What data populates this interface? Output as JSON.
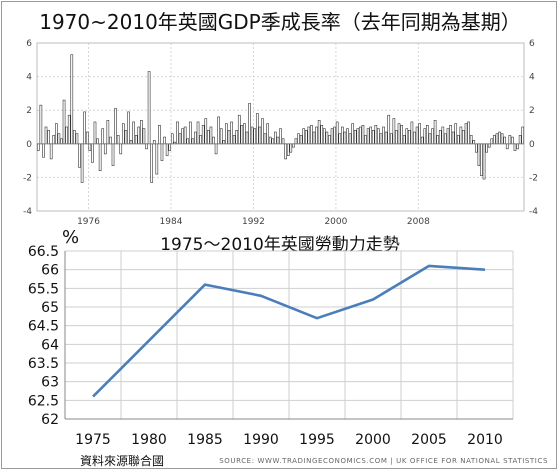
{
  "chart_data": [
    {
      "type": "bar",
      "title": "1970~2010年英國GDP季成長率（去年同期為基期）",
      "x_start_year": 1971,
      "ylim": [
        -4,
        6
      ],
      "y_ticks": [
        -4,
        -2,
        0,
        2,
        4,
        6
      ],
      "x_ticks": [
        "1976",
        "1984",
        "1992",
        "2000",
        "2008"
      ],
      "grid": true,
      "series": [
        {
          "values": [
            -0.4,
            2.3,
            -0.8,
            1.0,
            0.8,
            -0.9,
            0.5,
            1.2,
            0.6,
            0.3,
            2.6,
            1.0,
            1.7,
            5.3,
            0.8,
            0.6,
            -1.4,
            -2.3,
            1.9,
            0.7,
            -0.4,
            -1.1,
            1.3,
            0.3,
            -1.6,
            0.9,
            -0.6,
            1.4,
            0.4,
            -1.3,
            2.1,
            0.5,
            -0.6,
            1.2,
            0.8,
            1.9,
            0.2,
            1.3,
            0.5,
            1.0,
            1.4,
            0.9,
            -0.3,
            4.3,
            -2.3,
            0.2,
            -1.8,
            1.1,
            -1.0,
            0.4,
            -0.7,
            -0.4,
            0.6,
            0.1,
            1.3,
            0.6,
            0.9,
            1.0,
            0.3,
            1.3,
            0.3,
            0.7,
            1.3,
            0.5,
            1.1,
            1.5,
            0.8,
            1.0,
            0.4,
            -0.6,
            1.6,
            0.9,
            0.2,
            1.2,
            0.8,
            1.3,
            0.5,
            0.8,
            1.7,
            1.1,
            1.2,
            0.7,
            2.4,
            1.0,
            0.9,
            1.8,
            1.0,
            1.5,
            0.6,
            1.2,
            0.4,
            0.3,
            0.7,
            0.4,
            0.9,
            0.3,
            -0.9,
            -0.7,
            -0.5,
            -0.2,
            0.3,
            0.6,
            0.5,
            0.9,
            0.8,
            1.0,
            1.1,
            0.7,
            1.0,
            1.4,
            1.1,
            0.9,
            0.7,
            0.5,
            0.9,
            1.0,
            1.3,
            0.6,
            1.0,
            0.7,
            0.9,
            0.6,
            1.2,
            0.8,
            0.9,
            1.0,
            1.1,
            0.5,
            0.9,
            1.0,
            0.8,
            1.1,
            0.9,
            0.6,
            1.0,
            0.7,
            1.7,
            0.6,
            1.5,
            0.8,
            1.2,
            1.1,
            0.5,
            0.9,
            0.8,
            1.3,
            0.7,
            1.0,
            1.2,
            0.4,
            0.9,
            1.1,
            0.6,
            0.9,
            1.4,
            0.5,
            0.8,
            1.0,
            0.6,
            0.9,
            1.1,
            0.7,
            1.2,
            0.5,
            1.0,
            0.8,
            1.2,
            1.3,
            0.5,
            0.2,
            -0.5,
            -1.3,
            -1.9,
            -2.1,
            -0.5,
            -0.2,
            0.3,
            0.5,
            0.6,
            0.7,
            0.6,
            0.4,
            -0.3,
            0.5,
            0.4,
            -0.4,
            -0.3,
            0.5,
            1.0
          ]
        }
      ]
    },
    {
      "type": "line",
      "title": "1975～2010年英國勞動力走勢",
      "ylabel": "%",
      "categories": [
        "1975",
        "1980",
        "1985",
        "1990",
        "1995",
        "2000",
        "2005",
        "2010"
      ],
      "values": [
        62.6,
        64.1,
        65.6,
        65.3,
        64.7,
        65.2,
        66.1,
        66.0
      ],
      "ylim": [
        62,
        66.5
      ],
      "y_ticks": [
        "62",
        "62.5",
        "63",
        "63.5",
        "64",
        "64.5",
        "65",
        "65.5",
        "66",
        "66.5"
      ],
      "grid": true,
      "line_color": "#4a7ebb"
    }
  ],
  "footer": {
    "credit": "資料來源聯合國",
    "source": "SOURCE: WWW.TRADINGECONOMICS.COM | UK OFFICE FOR NATIONAL STATISTICS"
  }
}
